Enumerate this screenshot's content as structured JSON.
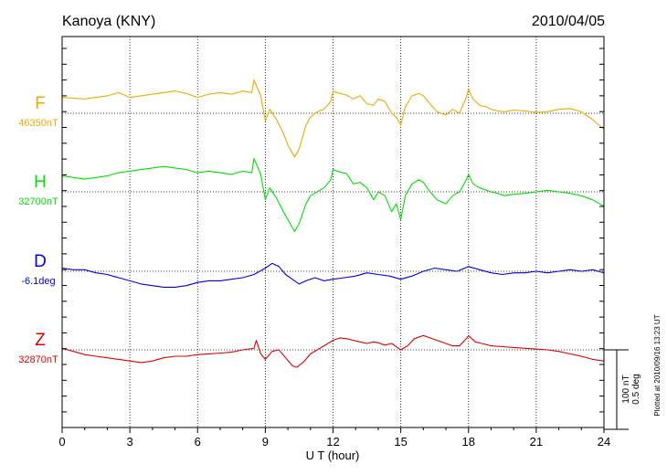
{
  "chart_data": {
    "type": "line",
    "title": "Kanoya (KNY)",
    "date": "2010/04/05",
    "xlabel": "U T (hour)",
    "xlim": [
      0,
      24
    ],
    "xticks": [
      "0",
      "3",
      "6",
      "9",
      "12",
      "15",
      "18",
      "21",
      "24"
    ],
    "grid": true,
    "scale_bar": {
      "line1": "100 nT",
      "line2": "0.5 deg"
    },
    "plotted_note": "Plotted at 2010/09/16 13:23 UT",
    "series": [
      {
        "name": "F",
        "baseline": "46350nT",
        "color": "#f0a800",
        "x": [
          0,
          0.5,
          1,
          1.5,
          2,
          2.5,
          3,
          3.5,
          4,
          4.5,
          5,
          5.5,
          6,
          6.5,
          7,
          7.5,
          8,
          8.4,
          8.5,
          8.8,
          9,
          9.2,
          9.5,
          9.8,
          10,
          10.3,
          10.5,
          10.8,
          11,
          11.3,
          11.6,
          11.9,
          12,
          12.3,
          12.6,
          12.9,
          13.2,
          13.5,
          13.8,
          14,
          14.3,
          14.6,
          14.8,
          15,
          15.2,
          15.5,
          15.8,
          16,
          16.3,
          16.6,
          17,
          17.3,
          17.6,
          17.9,
          18,
          18.2,
          18.5,
          18.8,
          19,
          19.3,
          19.6,
          20,
          20.5,
          21,
          21.5,
          22,
          22.5,
          23,
          23.5,
          24
        ],
        "y": [
          20,
          19,
          18,
          20,
          22,
          26,
          20,
          22,
          24,
          26,
          28,
          25,
          20,
          24,
          26,
          24,
          28,
          26,
          42,
          22,
          -10,
          5,
          -8,
          -25,
          -40,
          -55,
          -45,
          -15,
          -5,
          2,
          5,
          15,
          28,
          25,
          23,
          18,
          22,
          12,
          10,
          18,
          15,
          0,
          -5,
          -15,
          8,
          22,
          25,
          22,
          12,
          2,
          -2,
          5,
          0,
          20,
          30,
          18,
          10,
          8,
          5,
          3,
          2,
          4,
          3,
          1,
          2,
          5,
          6,
          2,
          -8,
          -20
        ]
      },
      {
        "name": "H",
        "baseline": "32700nT",
        "color": "#00e000",
        "x": [
          0,
          0.5,
          1,
          1.5,
          2,
          2.5,
          3,
          3.5,
          4,
          4.5,
          5,
          5.5,
          6,
          6.5,
          7,
          7.5,
          8,
          8.4,
          8.5,
          8.8,
          9,
          9.2,
          9.5,
          9.8,
          10,
          10.3,
          10.5,
          10.8,
          11,
          11.3,
          11.6,
          11.9,
          12,
          12.3,
          12.6,
          12.9,
          13.2,
          13.5,
          13.8,
          14,
          14.3,
          14.6,
          14.8,
          15,
          15.2,
          15.5,
          15.8,
          16,
          16.3,
          16.6,
          17,
          17.3,
          17.6,
          17.9,
          18,
          18.2,
          18.5,
          18.8,
          19,
          19.3,
          19.6,
          20,
          20.5,
          21,
          21.5,
          22,
          22.5,
          23,
          23.5,
          24
        ],
        "y": [
          20,
          18,
          16,
          18,
          20,
          24,
          26,
          28,
          30,
          32,
          30,
          28,
          24,
          26,
          24,
          22,
          26,
          24,
          42,
          22,
          -10,
          5,
          -8,
          -25,
          -35,
          -50,
          -40,
          -15,
          -5,
          0,
          5,
          15,
          28,
          25,
          23,
          10,
          12,
          5,
          -10,
          0,
          -5,
          -25,
          -15,
          -35,
          -5,
          10,
          15,
          12,
          0,
          -10,
          -15,
          -5,
          0,
          15,
          22,
          10,
          5,
          2,
          0,
          -2,
          -5,
          -3,
          -2,
          0,
          2,
          0,
          -2,
          -5,
          -10,
          -18
        ]
      },
      {
        "name": "D",
        "baseline": "-6.1deg",
        "color": "#0000e0",
        "x": [
          0,
          0.5,
          1,
          1.5,
          2,
          2.5,
          3,
          3.5,
          4,
          4.5,
          5,
          5.5,
          6,
          6.5,
          7,
          7.5,
          8,
          8.5,
          9,
          9.3,
          9.6,
          9.9,
          10.2,
          10.5,
          10.8,
          11.2,
          11.6,
          12,
          12.5,
          13,
          13.5,
          14,
          14.5,
          15,
          15.5,
          16,
          16.5,
          17,
          17.5,
          18,
          18.5,
          19,
          19.5,
          20,
          20.5,
          21,
          21.5,
          22,
          22.5,
          23,
          23.5,
          24
        ],
        "y": [
          0.02,
          0.01,
          0.01,
          -0.01,
          -0.02,
          -0.04,
          -0.06,
          -0.08,
          -0.09,
          -0.1,
          -0.1,
          -0.09,
          -0.07,
          -0.06,
          -0.06,
          -0.05,
          -0.04,
          -0.02,
          0.02,
          0.05,
          0.03,
          -0.02,
          -0.05,
          -0.08,
          -0.06,
          -0.04,
          -0.06,
          -0.05,
          -0.04,
          -0.03,
          -0.01,
          -0.02,
          -0.03,
          -0.05,
          -0.03,
          0.0,
          0.02,
          0.01,
          0.0,
          0.03,
          0.01,
          -0.01,
          -0.02,
          -0.01,
          -0.01,
          0.0,
          -0.01,
          0.0,
          0.01,
          0.0,
          0.01,
          -0.01
        ]
      },
      {
        "name": "Z",
        "baseline": "32870nT",
        "color": "#e00000",
        "x": [
          0,
          0.5,
          1,
          1.5,
          2,
          2.5,
          3,
          3.5,
          4,
          4.5,
          5,
          5.5,
          6,
          6.5,
          7,
          7.5,
          8,
          8.5,
          8.6,
          8.8,
          9,
          9.3,
          9.6,
          9.9,
          10.2,
          10.4,
          10.7,
          11,
          11.3,
          11.6,
          12,
          12.3,
          12.6,
          12.9,
          13.2,
          13.5,
          13.8,
          14,
          14.3,
          14.6,
          14.9,
          15,
          15.3,
          15.6,
          16,
          16.3,
          16.6,
          17,
          17.3,
          17.6,
          17.9,
          18,
          18.3,
          18.6,
          19,
          19.5,
          20,
          20.5,
          21,
          21.5,
          22,
          22.5,
          23,
          23.5,
          24
        ],
        "y": [
          2,
          -2,
          -6,
          -8,
          -10,
          -12,
          -14,
          -16,
          -14,
          -10,
          -8,
          -8,
          -6,
          -5,
          -4,
          -3,
          0,
          2,
          12,
          -5,
          -12,
          -2,
          0,
          -10,
          -20,
          -22,
          -15,
          -5,
          0,
          5,
          12,
          15,
          14,
          12,
          10,
          8,
          10,
          9,
          6,
          8,
          2,
          0,
          5,
          14,
          18,
          15,
          12,
          8,
          5,
          5,
          14,
          18,
          10,
          8,
          5,
          4,
          3,
          2,
          1,
          0,
          -2,
          -5,
          -8,
          -12,
          -14
        ]
      }
    ]
  }
}
